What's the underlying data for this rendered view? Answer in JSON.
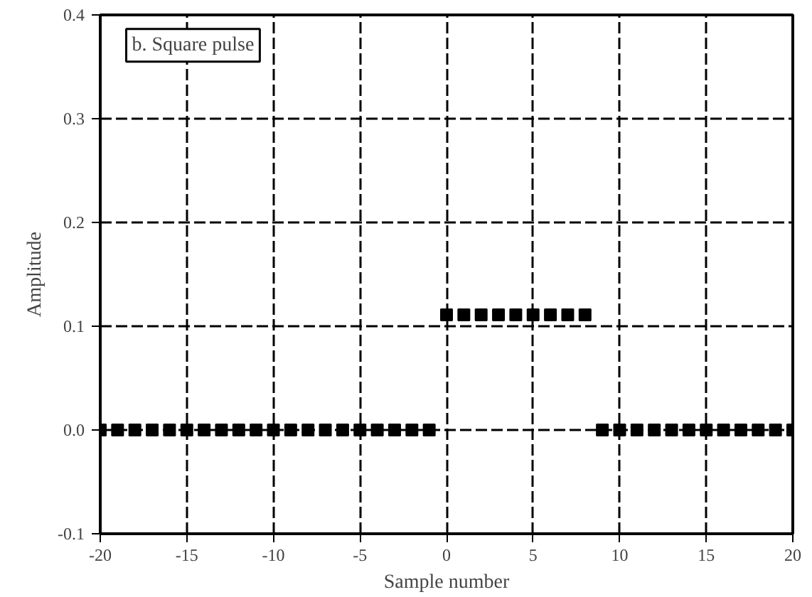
{
  "chart_data": {
    "type": "scatter",
    "xlabel": "Sample number",
    "ylabel": "Amplitude",
    "annotations": [
      "b. Square pulse"
    ],
    "x": [
      -20,
      -19,
      -18,
      -17,
      -16,
      -15,
      -14,
      -13,
      -12,
      -11,
      -10,
      -9,
      -8,
      -7,
      -6,
      -5,
      -4,
      -3,
      -2,
      -1,
      0,
      1,
      2,
      3,
      4,
      5,
      6,
      7,
      8,
      9,
      10,
      11,
      12,
      13,
      14,
      15,
      16,
      17,
      18,
      19,
      20
    ],
    "series": [
      {
        "color": "#000000",
        "values": [
          0,
          0,
          0,
          0,
          0,
          0,
          0,
          0,
          0,
          0,
          0,
          0,
          0,
          0,
          0,
          0,
          0,
          0,
          0,
          0,
          0.111,
          0.111,
          0.111,
          0.111,
          0.111,
          0.111,
          0.111,
          0.111,
          0.111,
          0,
          0,
          0,
          0,
          0,
          0,
          0,
          0,
          0,
          0,
          0,
          0
        ]
      }
    ],
    "marker": "square",
    "grid": true,
    "xlim": [
      -20,
      20
    ],
    "ylim": [
      -0.1,
      0.4
    ],
    "xticks": [
      -20,
      -15,
      -10,
      -5,
      0,
      5,
      10,
      15,
      20
    ],
    "yticks": [
      {
        "value": -0.1,
        "label": "-0.1"
      },
      {
        "value": 0,
        "label": "0.0"
      },
      {
        "value": 0.1,
        "label": "0.1"
      },
      {
        "value": 0.2,
        "label": "0.2"
      },
      {
        "value": 0.3,
        "label": "0.3"
      },
      {
        "value": 0.4,
        "label": "0.4"
      }
    ]
  }
}
